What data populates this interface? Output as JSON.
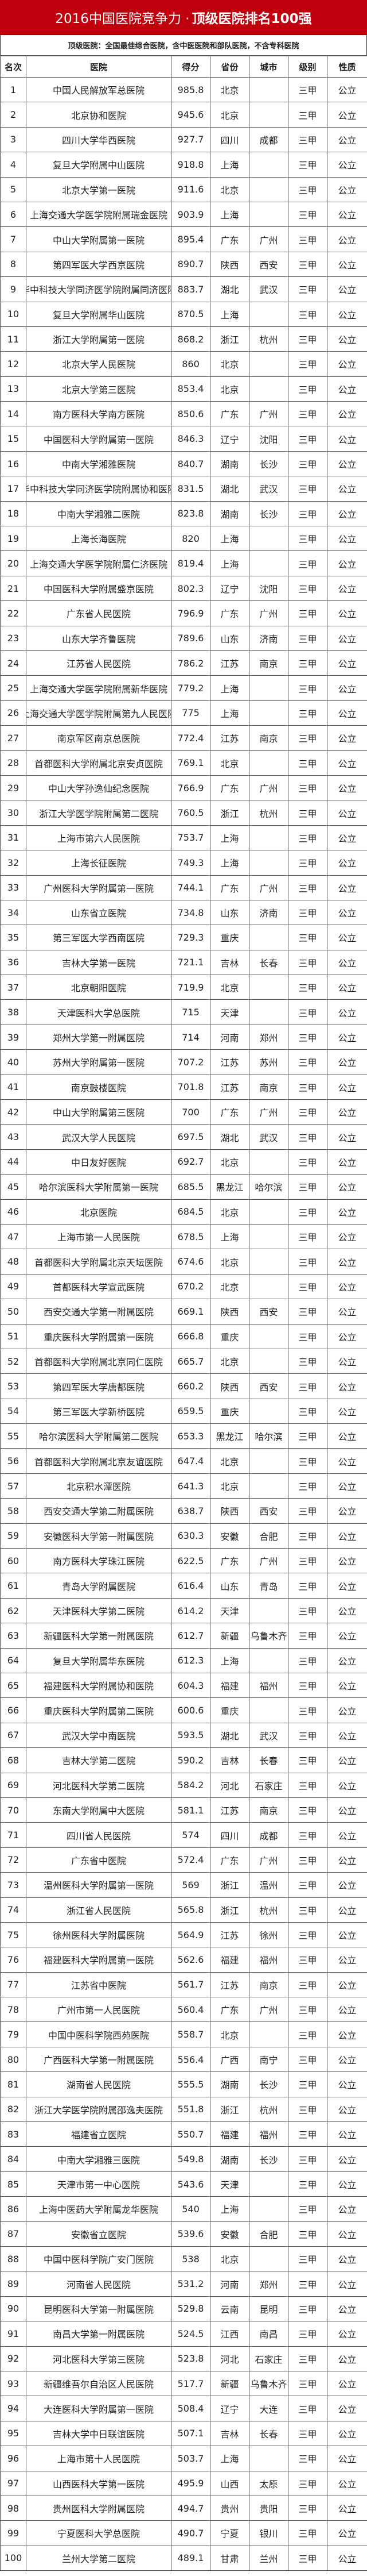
{
  "title": {
    "main": "2016中国医院竞争力 · ",
    "bold": "顶级医院排名100强"
  },
  "subtitle": "顶级医院：全国最佳综合医院，含中医医院和部队医院，不含专科医院",
  "colors": {
    "title_bg": "#c1000d"
  },
  "columns": [
    "名次",
    "医院",
    "得分",
    "省份",
    "城市",
    "级别",
    "性质"
  ],
  "rows": [
    [
      "1",
      "中国人民解放军总医院",
      "985.8",
      "北京",
      "",
      "三甲",
      "公立"
    ],
    [
      "2",
      "北京协和医院",
      "945.6",
      "北京",
      "",
      "三甲",
      "公立"
    ],
    [
      "3",
      "四川大学华西医院",
      "927.7",
      "四川",
      "成都",
      "三甲",
      "公立"
    ],
    [
      "4",
      "复旦大学附属中山医院",
      "918.8",
      "上海",
      "",
      "三甲",
      "公立"
    ],
    [
      "5",
      "北京大学第一医院",
      "911.6",
      "北京",
      "",
      "三甲",
      "公立"
    ],
    [
      "6",
      "上海交通大学医学院附属瑞金医院",
      "903.9",
      "上海",
      "",
      "三甲",
      "公立"
    ],
    [
      "7",
      "中山大学附属第一医院",
      "895.4",
      "广东",
      "广州",
      "三甲",
      "公立"
    ],
    [
      "8",
      "第四军医大学西京医院",
      "890.7",
      "陕西",
      "西安",
      "三甲",
      "公立"
    ],
    [
      "9",
      "华中科技大学同济医学院附属同济医院",
      "883.7",
      "湖北",
      "武汉",
      "三甲",
      "公立"
    ],
    [
      "10",
      "复旦大学附属华山医院",
      "870.5",
      "上海",
      "",
      "三甲",
      "公立"
    ],
    [
      "11",
      "浙江大学附属第一医院",
      "868.2",
      "浙江",
      "杭州",
      "三甲",
      "公立"
    ],
    [
      "12",
      "北京大学人民医院",
      "860",
      "北京",
      "",
      "三甲",
      "公立"
    ],
    [
      "13",
      "北京大学第三医院",
      "853.4",
      "北京",
      "",
      "三甲",
      "公立"
    ],
    [
      "14",
      "南方医科大学南方医院",
      "850.6",
      "广东",
      "广州",
      "三甲",
      "公立"
    ],
    [
      "15",
      "中国医科大学附属第一医院",
      "846.3",
      "辽宁",
      "沈阳",
      "三甲",
      "公立"
    ],
    [
      "16",
      "中南大学湘雅医院",
      "840.7",
      "湖南",
      "长沙",
      "三甲",
      "公立"
    ],
    [
      "17",
      "华中科技大学同济医学院附属协和医院",
      "831.5",
      "湖北",
      "武汉",
      "三甲",
      "公立"
    ],
    [
      "18",
      "中南大学湘雅二医院",
      "823.8",
      "湖南",
      "长沙",
      "三甲",
      "公立"
    ],
    [
      "19",
      "上海长海医院",
      "820",
      "上海",
      "",
      "三甲",
      "公立"
    ],
    [
      "20",
      "上海交通大学医学院附属仁济医院",
      "819.4",
      "上海",
      "",
      "三甲",
      "公立"
    ],
    [
      "21",
      "中国医科大学附属盛京医院",
      "802.3",
      "辽宁",
      "沈阳",
      "三甲",
      "公立"
    ],
    [
      "22",
      "广东省人民医院",
      "796.9",
      "广东",
      "广州",
      "三甲",
      "公立"
    ],
    [
      "23",
      "山东大学齐鲁医院",
      "789.6",
      "山东",
      "济南",
      "三甲",
      "公立"
    ],
    [
      "24",
      "江苏省人民医院",
      "786.2",
      "江苏",
      "南京",
      "三甲",
      "公立"
    ],
    [
      "25",
      "上海交通大学医学院附属新华医院",
      "779.2",
      "上海",
      "",
      "三甲",
      "公立"
    ],
    [
      "26",
      "上海交通大学医学院附属第九人民医院",
      "775",
      "上海",
      "",
      "三甲",
      "公立"
    ],
    [
      "27",
      "南京军区南京总医院",
      "772.4",
      "江苏",
      "南京",
      "三甲",
      "公立"
    ],
    [
      "28",
      "首都医科大学附属北京安贞医院",
      "769.1",
      "北京",
      "",
      "三甲",
      "公立"
    ],
    [
      "29",
      "中山大学孙逸仙纪念医院",
      "766.9",
      "广东",
      "广州",
      "三甲",
      "公立"
    ],
    [
      "30",
      "浙江大学医学院附属第二医院",
      "760.5",
      "浙江",
      "杭州",
      "三甲",
      "公立"
    ],
    [
      "31",
      "上海市第六人民医院",
      "753.7",
      "上海",
      "",
      "三甲",
      "公立"
    ],
    [
      "32",
      "上海长征医院",
      "749.3",
      "上海",
      "",
      "三甲",
      "公立"
    ],
    [
      "33",
      "广州医科大学附属第一医院",
      "744.1",
      "广东",
      "广州",
      "三甲",
      "公立"
    ],
    [
      "34",
      "山东省立医院",
      "734.8",
      "山东",
      "济南",
      "三甲",
      "公立"
    ],
    [
      "35",
      "第三军医大学西南医院",
      "729.3",
      "重庆",
      "",
      "三甲",
      "公立"
    ],
    [
      "36",
      "吉林大学第一医院",
      "721.1",
      "吉林",
      "长春",
      "三甲",
      "公立"
    ],
    [
      "37",
      "北京朝阳医院",
      "719.9",
      "北京",
      "",
      "三甲",
      "公立"
    ],
    [
      "38",
      "天津医科大学总医院",
      "715",
      "天津",
      "",
      "三甲",
      "公立"
    ],
    [
      "39",
      "郑州大学第一附属医院",
      "714",
      "河南",
      "郑州",
      "三甲",
      "公立"
    ],
    [
      "40",
      "苏州大学附属第一医院",
      "707.2",
      "江苏",
      "苏州",
      "三甲",
      "公立"
    ],
    [
      "41",
      "南京鼓楼医院",
      "701.8",
      "江苏",
      "南京",
      "三甲",
      "公立"
    ],
    [
      "42",
      "中山大学附属第三医院",
      "700",
      "广东",
      "广州",
      "三甲",
      "公立"
    ],
    [
      "43",
      "武汉大学人民医院",
      "697.5",
      "湖北",
      "武汉",
      "三甲",
      "公立"
    ],
    [
      "44",
      "中日友好医院",
      "692.7",
      "北京",
      "",
      "三甲",
      "公立"
    ],
    [
      "45",
      "哈尔滨医科大学附属第一医院",
      "685.5",
      "黑龙江",
      "哈尔滨",
      "三甲",
      "公立"
    ],
    [
      "46",
      "北京医院",
      "684.5",
      "北京",
      "",
      "三甲",
      "公立"
    ],
    [
      "47",
      "上海市第一人民医院",
      "678.5",
      "上海",
      "",
      "三甲",
      "公立"
    ],
    [
      "48",
      "首都医科大学附属北京天坛医院",
      "674.6",
      "北京",
      "",
      "三甲",
      "公立"
    ],
    [
      "49",
      "首都医科大学宣武医院",
      "670.2",
      "北京",
      "",
      "三甲",
      "公立"
    ],
    [
      "50",
      "西安交通大学第一附属医院",
      "669.1",
      "陕西",
      "西安",
      "三甲",
      "公立"
    ],
    [
      "51",
      "重庆医科大学附属第一医院",
      "666.8",
      "重庆",
      "",
      "三甲",
      "公立"
    ],
    [
      "52",
      "首都医科大学附属北京同仁医院",
      "665.7",
      "北京",
      "",
      "三甲",
      "公立"
    ],
    [
      "53",
      "第四军医大学唐都医院",
      "660.2",
      "陕西",
      "西安",
      "三甲",
      "公立"
    ],
    [
      "54",
      "第三军医大学新桥医院",
      "659.5",
      "重庆",
      "",
      "三甲",
      "公立"
    ],
    [
      "55",
      "哈尔滨医科大学附属第二医院",
      "653.3",
      "黑龙江",
      "哈尔滨",
      "三甲",
      "公立"
    ],
    [
      "56",
      "首都医科大学附属北京友谊医院",
      "647.4",
      "北京",
      "",
      "三甲",
      "公立"
    ],
    [
      "57",
      "北京积水潭医院",
      "641.3",
      "北京",
      "",
      "三甲",
      "公立"
    ],
    [
      "58",
      "西安交通大学第二附属医院",
      "638.7",
      "陕西",
      "西安",
      "三甲",
      "公立"
    ],
    [
      "59",
      "安徽医科大学第一附属医院",
      "630.3",
      "安徽",
      "合肥",
      "三甲",
      "公立"
    ],
    [
      "60",
      "南方医科大学珠江医院",
      "622.5",
      "广东",
      "广州",
      "三甲",
      "公立"
    ],
    [
      "61",
      "青岛大学附属医院",
      "616.4",
      "山东",
      "青岛",
      "三甲",
      "公立"
    ],
    [
      "62",
      "天津医科大学第二医院",
      "614.2",
      "天津",
      "",
      "三甲",
      "公立"
    ],
    [
      "63",
      "新疆医科大学第一附属医院",
      "612.7",
      "新疆",
      "乌鲁木齐",
      "三甲",
      "公立"
    ],
    [
      "64",
      "复旦大学附属华东医院",
      "612.3",
      "上海",
      "",
      "三甲",
      "公立"
    ],
    [
      "65",
      "福建医科大学附属协和医院",
      "604.3",
      "福建",
      "福州",
      "三甲",
      "公立"
    ],
    [
      "66",
      "重庆医科大学附属第二医院",
      "600.6",
      "重庆",
      "",
      "三甲",
      "公立"
    ],
    [
      "67",
      "武汉大学中南医院",
      "593.5",
      "湖北",
      "武汉",
      "三甲",
      "公立"
    ],
    [
      "68",
      "吉林大学第二医院",
      "590.2",
      "吉林",
      "长春",
      "三甲",
      "公立"
    ],
    [
      "69",
      "河北医科大学第二医院",
      "584.2",
      "河北",
      "石家庄",
      "三甲",
      "公立"
    ],
    [
      "70",
      "东南大学附属中大医院",
      "581.1",
      "江苏",
      "南京",
      "三甲",
      "公立"
    ],
    [
      "71",
      "四川省人民医院",
      "574",
      "四川",
      "成都",
      "三甲",
      "公立"
    ],
    [
      "72",
      "广东省中医院",
      "572.4",
      "广东",
      "广州",
      "三甲",
      "公立"
    ],
    [
      "73",
      "温州医科大学附属第一医院",
      "569",
      "浙江",
      "温州",
      "三甲",
      "公立"
    ],
    [
      "74",
      "浙江省人民医院",
      "565.8",
      "浙江",
      "杭州",
      "三甲",
      "公立"
    ],
    [
      "75",
      "徐州医科大学附属医院",
      "564.9",
      "江苏",
      "徐州",
      "三甲",
      "公立"
    ],
    [
      "76",
      "福建医科大学附属第一医院",
      "562.6",
      "福建",
      "福州",
      "三甲",
      "公立"
    ],
    [
      "77",
      "江苏省中医院",
      "561.7",
      "江苏",
      "南京",
      "三甲",
      "公立"
    ],
    [
      "78",
      "广州市第一人民医院",
      "560.4",
      "广东",
      "广州",
      "三甲",
      "公立"
    ],
    [
      "79",
      "中国中医科学院西苑医院",
      "558.7",
      "北京",
      "",
      "三甲",
      "公立"
    ],
    [
      "80",
      "广西医科大学第一附属医院",
      "556.4",
      "广西",
      "南宁",
      "三甲",
      "公立"
    ],
    [
      "81",
      "湖南省人民医院",
      "555.5",
      "湖南",
      "长沙",
      "三甲",
      "公立"
    ],
    [
      "82",
      "浙江大学医学院附属邵逸夫医院",
      "551.8",
      "浙江",
      "杭州",
      "三甲",
      "公立"
    ],
    [
      "83",
      "福建省立医院",
      "550.7",
      "福建",
      "福州",
      "三甲",
      "公立"
    ],
    [
      "84",
      "中南大学湘雅三医院",
      "549.8",
      "湖南",
      "长沙",
      "三甲",
      "公立"
    ],
    [
      "85",
      "天津市第一中心医院",
      "543.6",
      "天津",
      "",
      "三甲",
      "公立"
    ],
    [
      "86",
      "上海中医药大学附属龙华医院",
      "540",
      "上海",
      "",
      "三甲",
      "公立"
    ],
    [
      "87",
      "安徽省立医院",
      "539.6",
      "安徽",
      "合肥",
      "三甲",
      "公立"
    ],
    [
      "88",
      "中国中医科学院广安门医院",
      "538",
      "北京",
      "",
      "三甲",
      "公立"
    ],
    [
      "89",
      "河南省人民医院",
      "531.2",
      "河南",
      "郑州",
      "三甲",
      "公立"
    ],
    [
      "90",
      "昆明医科大学第一附属医院",
      "529.8",
      "云南",
      "昆明",
      "三甲",
      "公立"
    ],
    [
      "91",
      "南昌大学第一附属医院",
      "524.5",
      "江西",
      "南昌",
      "三甲",
      "公立"
    ],
    [
      "92",
      "河北医科大学第三医院",
      "523.8",
      "河北",
      "石家庄",
      "三甲",
      "公立"
    ],
    [
      "93",
      "新疆维吾尔自治区人民医院",
      "517.7",
      "新疆",
      "乌鲁木齐",
      "三甲",
      "公立"
    ],
    [
      "94",
      "大连医科大学附属第一医院",
      "508.4",
      "辽宁",
      "大连",
      "三甲",
      "公立"
    ],
    [
      "95",
      "吉林大学中日联谊医院",
      "507.1",
      "吉林",
      "长春",
      "三甲",
      "公立"
    ],
    [
      "96",
      "上海市第十人民医院",
      "503.7",
      "上海",
      "",
      "三甲",
      "公立"
    ],
    [
      "97",
      "山西医科大学第一医院",
      "495.9",
      "山西",
      "太原",
      "三甲",
      "公立"
    ],
    [
      "98",
      "贵州医科大学附属医院",
      "494.7",
      "贵州",
      "贵阳",
      "三甲",
      "公立"
    ],
    [
      "99",
      "宁夏医科大学总医院",
      "490.7",
      "宁夏",
      "银川",
      "三甲",
      "公立"
    ],
    [
      "100",
      "兰州大学第二医院",
      "489.1",
      "甘肃",
      "兰州",
      "三甲",
      "公立"
    ]
  ]
}
